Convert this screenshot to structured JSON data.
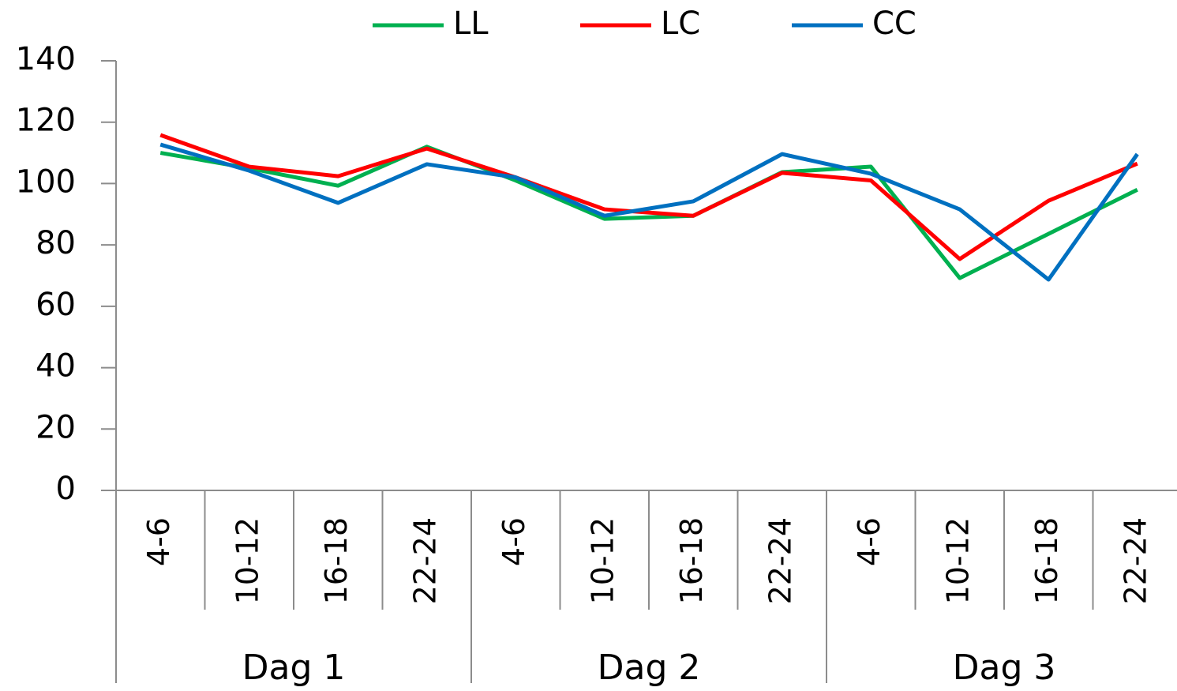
{
  "chart_data": {
    "type": "line",
    "categories": [
      "4-6",
      "10-12",
      "16-18",
      "22-24",
      "4-6",
      "10-12",
      "16-18",
      "22-24",
      "4-6",
      "10-12",
      "16-18",
      "22-24"
    ],
    "groups": [
      "Dag 1",
      "Dag 2",
      "Dag 3"
    ],
    "series": [
      {
        "name": "LL",
        "color": "#00b050",
        "values": [
          110,
          105,
          99.3,
          112,
          101,
          88.5,
          89.5,
          103.7,
          105.5,
          69.2,
          83.6,
          98
        ]
      },
      {
        "name": "LC",
        "color": "#ff0000",
        "values": [
          115.8,
          105.5,
          102.4,
          111.4,
          102,
          91.6,
          89.5,
          103.5,
          101,
          75.4,
          94.4,
          106.5
        ]
      },
      {
        "name": "CC",
        "color": "#0070c0",
        "values": [
          112.7,
          104.2,
          93.7,
          106.3,
          102,
          89.5,
          94.2,
          109.6,
          103.2,
          91.6,
          68.7,
          109.6
        ]
      }
    ],
    "ylim": [
      0,
      140
    ],
    "yticks": [
      0,
      20,
      40,
      60,
      80,
      100,
      120,
      140
    ],
    "grid": false,
    "legend": "top"
  }
}
